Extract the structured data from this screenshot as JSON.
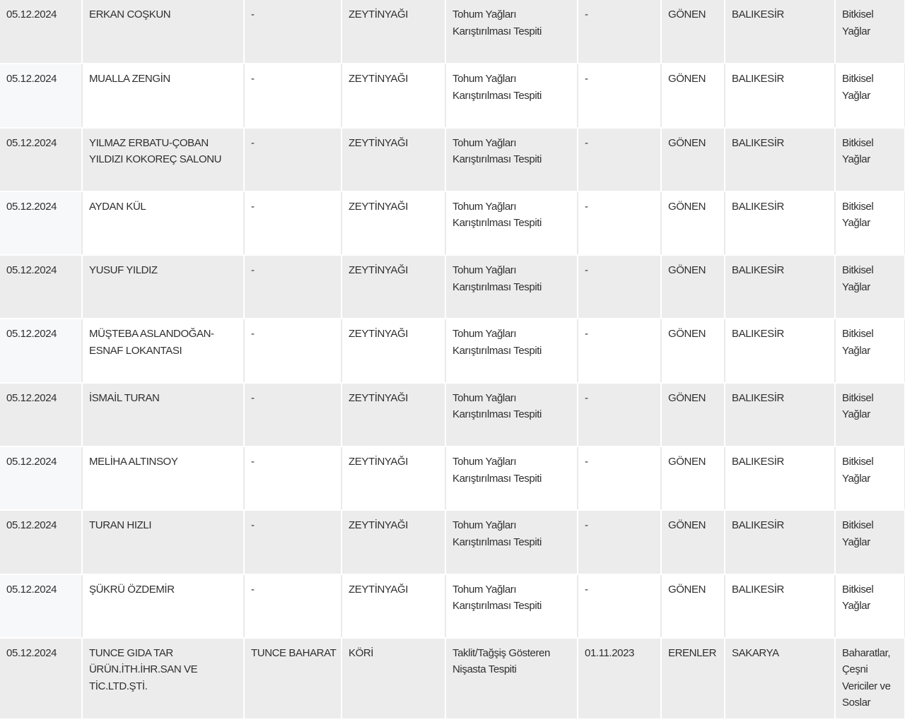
{
  "rows": [
    {
      "date": "05.12.2024",
      "firm": "ERKAN COŞKUN",
      "brand": "-",
      "product": "ZEYTİNYAĞI",
      "violation": "Tohum Yağları Karıştırılması Tespiti",
      "batch": "-",
      "district": "GÖNEN",
      "province": "BALIKESİR",
      "group": "Bitkisel Yağlar"
    },
    {
      "date": "05.12.2024",
      "firm": "MUALLA ZENGİN",
      "brand": "-",
      "product": "ZEYTİNYAĞI",
      "violation": "Tohum Yağları Karıştırılması Tespiti",
      "batch": "-",
      "district": "GÖNEN",
      "province": "BALIKESİR",
      "group": "Bitkisel Yağlar"
    },
    {
      "date": "05.12.2024",
      "firm": "YILMAZ ERBATU-ÇOBAN YILDIZI KOKOREÇ SALONU",
      "brand": "-",
      "product": "ZEYTİNYAĞI",
      "violation": "Tohum Yağları Karıştırılması Tespiti",
      "batch": "-",
      "district": "GÖNEN",
      "province": "BALIKESİR",
      "group": "Bitkisel Yağlar"
    },
    {
      "date": "05.12.2024",
      "firm": "AYDAN KÜL",
      "brand": "-",
      "product": "ZEYTİNYAĞI",
      "violation": "Tohum Yağları Karıştırılması Tespiti",
      "batch": "-",
      "district": "GÖNEN",
      "province": "BALIKESİR",
      "group": "Bitkisel Yağlar"
    },
    {
      "date": "05.12.2024",
      "firm": "YUSUF YILDIZ",
      "brand": "-",
      "product": "ZEYTİNYAĞI",
      "violation": "Tohum Yağları Karıştırılması Tespiti",
      "batch": "-",
      "district": "GÖNEN",
      "province": "BALIKESİR",
      "group": "Bitkisel Yağlar"
    },
    {
      "date": "05.12.2024",
      "firm": "MÜŞTEBA ASLANDOĞAN-ESNAF LOKANTASI",
      "brand": "-",
      "product": "ZEYTİNYAĞI",
      "violation": "Tohum Yağları Karıştırılması Tespiti",
      "batch": "-",
      "district": "GÖNEN",
      "province": "BALIKESİR",
      "group": "Bitkisel Yağlar"
    },
    {
      "date": "05.12.2024",
      "firm": "İSMAİL TURAN",
      "brand": "-",
      "product": "ZEYTİNYAĞI",
      "violation": "Tohum Yağları Karıştırılması Tespiti",
      "batch": "-",
      "district": "GÖNEN",
      "province": "BALIKESİR",
      "group": "Bitkisel Yağlar"
    },
    {
      "date": "05.12.2024",
      "firm": "MELİHA ALTINSOY",
      "brand": "-",
      "product": "ZEYTİNYAĞI",
      "violation": "Tohum Yağları Karıştırılması Tespiti",
      "batch": "-",
      "district": "GÖNEN",
      "province": "BALIKESİR",
      "group": "Bitkisel Yağlar"
    },
    {
      "date": "05.12.2024",
      "firm": "TURAN HIZLI",
      "brand": "-",
      "product": "ZEYTİNYAĞI",
      "violation": "Tohum Yağları Karıştırılması Tespiti",
      "batch": "-",
      "district": "GÖNEN",
      "province": "BALIKESİR",
      "group": "Bitkisel Yağlar"
    },
    {
      "date": "05.12.2024",
      "firm": "ŞÜKRÜ ÖZDEMİR",
      "brand": "-",
      "product": "ZEYTİNYAĞI",
      "violation": "Tohum Yağları Karıştırılması Tespiti",
      "batch": "-",
      "district": "GÖNEN",
      "province": "BALIKESİR",
      "group": "Bitkisel Yağlar"
    },
    {
      "date": "05.12.2024",
      "firm": "TUNCE GIDA TAR ÜRÜN.İTH.İHR.SAN VE TİC.LTD.ŞTİ.",
      "brand": "TUNCE BAHARAT",
      "product": "KÖRİ",
      "violation": "Taklit/Tağşiş Gösteren Nişasta Tespiti",
      "batch": "01.11.2023",
      "district": "ERENLER",
      "province": "SAKARYA",
      "group": "Baharatlar, Çeşni Vericiler ve Soslar"
    }
  ]
}
